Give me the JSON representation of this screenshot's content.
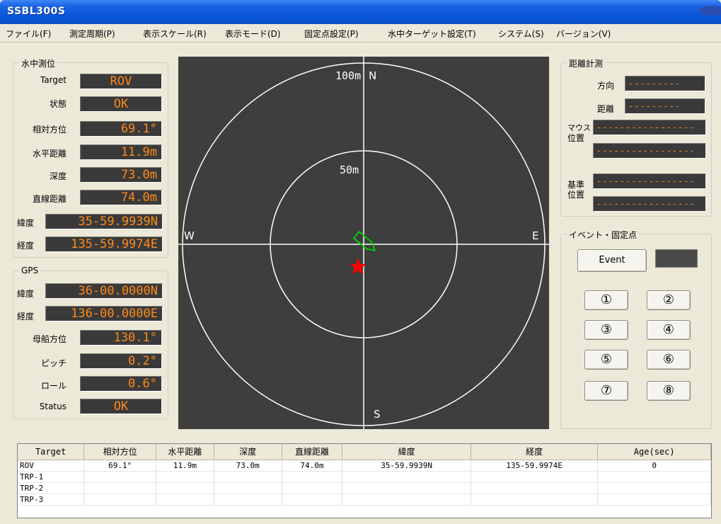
{
  "window": {
    "title": "SSBL300S"
  },
  "menu": [
    "ファイル(F)",
    "測定周期(P)",
    "表示スケール(R)",
    "表示モード(D)",
    "固定点設定(P)",
    "水中ターゲット設定(T)",
    "システム(S)",
    "バージョン(V)"
  ],
  "underwater": {
    "title": "水中測位",
    "fields": [
      {
        "label": "Target",
        "value": "ROV"
      },
      {
        "label": "状態",
        "value": "OK"
      },
      {
        "label": "相対方位",
        "value": "69.1°"
      },
      {
        "label": "水平距離",
        "value": "11.9m"
      },
      {
        "label": "深度",
        "value": "73.0m"
      },
      {
        "label": "直線距離",
        "value": "74.0m"
      },
      {
        "label": "緯度",
        "value": "35-59.9939N"
      },
      {
        "label": "経度",
        "value": "135-59.9974E"
      }
    ]
  },
  "gps": {
    "title": "GPS",
    "fields": [
      {
        "label": "緯度",
        "value": "36-00.0000N"
      },
      {
        "label": "経度",
        "value": "136-00.0000E"
      },
      {
        "label": "母船方位",
        "value": "130.1°"
      },
      {
        "label": "ピッチ",
        "value": "0.2°"
      },
      {
        "label": "ロール",
        "value": "0.6°"
      },
      {
        "label": "Status",
        "value": "OK"
      }
    ]
  },
  "radar": {
    "outer_label": "100m",
    "inner_label": "50m",
    "north": "N",
    "south": "S",
    "east": "E",
    "west": "W",
    "ship_color": "#00cc00",
    "target_color": "#ff0000"
  },
  "distance": {
    "title": "距離計測",
    "direction_label": "方向",
    "distance_label": "距離",
    "mouse_label_1": "マウス",
    "mouse_label_2": "位置",
    "ref_label_1": "基準",
    "ref_label_2": "位置",
    "dashes": "---------",
    "long_dashes": "-----------------"
  },
  "event": {
    "title": "イベント・固定点",
    "event_button": "Event",
    "points": [
      "①",
      "②",
      "③",
      "④",
      "⑤",
      "⑥",
      "⑦",
      "⑧"
    ]
  },
  "table": {
    "headers": [
      "Target",
      "相対方位",
      "水平距離",
      "深度",
      "直線距離",
      "緯度",
      "経度",
      "Age(sec)"
    ],
    "rows": [
      [
        "ROV",
        "69.1°",
        "11.9m",
        "73.0m",
        "74.0m",
        "35-59.9939N",
        "135-59.9974E",
        "0"
      ],
      [
        "TRP-1",
        "",
        "",
        "",
        "",
        "",
        "",
        ""
      ],
      [
        "TRP-2",
        "",
        "",
        "",
        "",
        "",
        "",
        ""
      ],
      [
        "TRP-3",
        "",
        "",
        "",
        "",
        "",
        "",
        ""
      ]
    ]
  }
}
